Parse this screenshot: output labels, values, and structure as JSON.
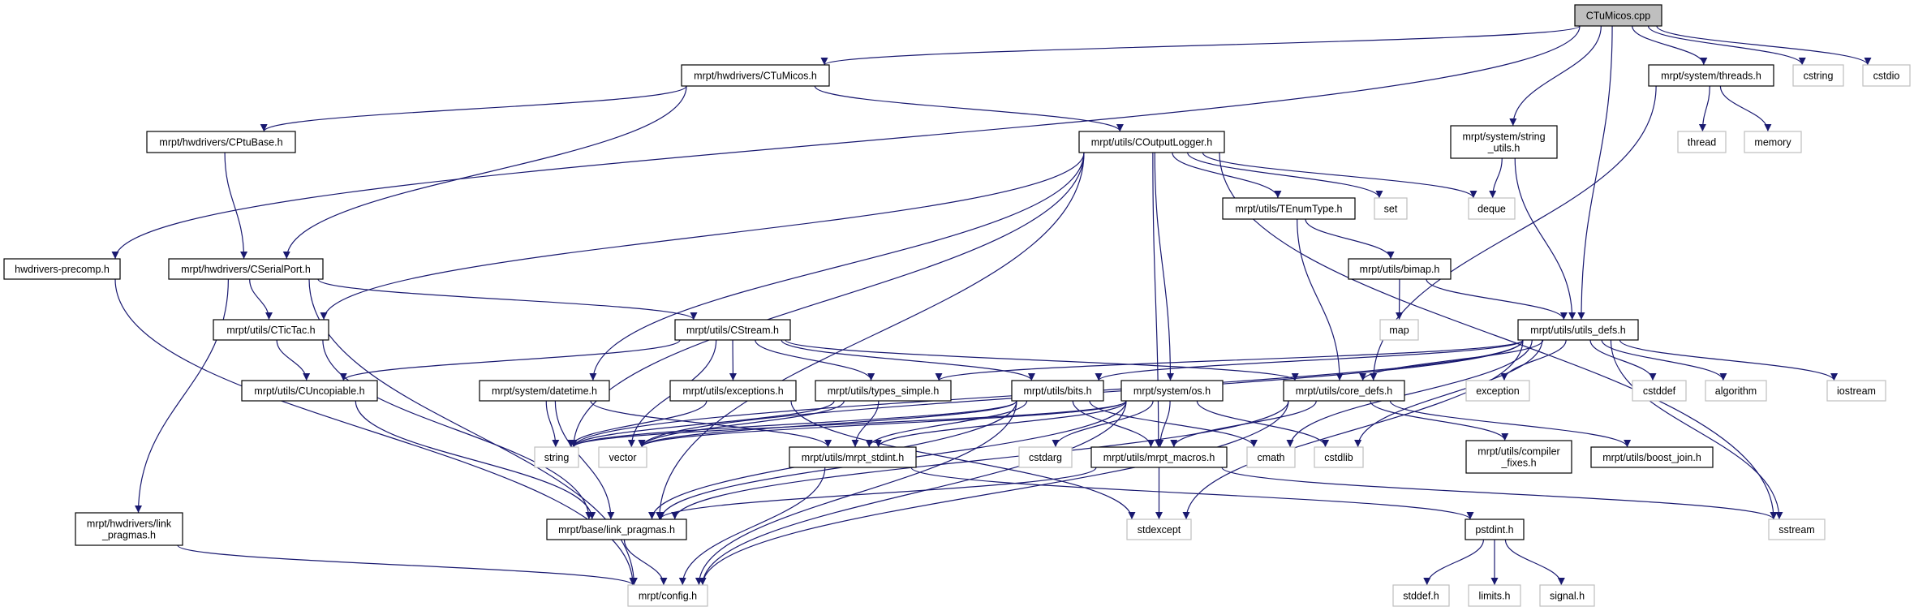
{
  "colors": {
    "edge": "#191970",
    "root_fill": "#bfbfbf",
    "external_border": "#bfbfbf",
    "documented_border": "#000000"
  },
  "nodes": {
    "cpp": {
      "lines": [
        "CTuMicos.cpp"
      ],
      "kind": "root"
    },
    "ctumicos_h": {
      "lines": [
        "mrpt/hwdrivers/CTuMicos.h"
      ],
      "kind": "documented"
    },
    "threads": {
      "lines": [
        "mrpt/system/threads.h"
      ],
      "kind": "documented"
    },
    "cstring": {
      "lines": [
        "cstring"
      ],
      "kind": "external"
    },
    "cstdio": {
      "lines": [
        "cstdio"
      ],
      "kind": "external"
    },
    "cptubase": {
      "lines": [
        "mrpt/hwdrivers/CPtuBase.h"
      ],
      "kind": "documented"
    },
    "outputlogger": {
      "lines": [
        "mrpt/utils/COutputLogger.h"
      ],
      "kind": "documented"
    },
    "string_utils": {
      "lines": [
        "mrpt/system/string",
        "_utils.h"
      ],
      "kind": "documented"
    },
    "thread": {
      "lines": [
        "thread"
      ],
      "kind": "external"
    },
    "memory": {
      "lines": [
        "memory"
      ],
      "kind": "external"
    },
    "precomp": {
      "lines": [
        "hwdrivers-precomp.h"
      ],
      "kind": "documented"
    },
    "serialport": {
      "lines": [
        "mrpt/hwdrivers/CSerialPort.h"
      ],
      "kind": "documented"
    },
    "tenum": {
      "lines": [
        "mrpt/utils/TEnumType.h"
      ],
      "kind": "documented"
    },
    "set": {
      "lines": [
        "set"
      ],
      "kind": "external"
    },
    "deque": {
      "lines": [
        "deque"
      ],
      "kind": "external"
    },
    "bimap": {
      "lines": [
        "mrpt/utils/bimap.h"
      ],
      "kind": "documented"
    },
    "tictac": {
      "lines": [
        "mrpt/utils/CTicTac.h"
      ],
      "kind": "documented"
    },
    "cstream": {
      "lines": [
        "mrpt/utils/CStream.h"
      ],
      "kind": "documented"
    },
    "map": {
      "lines": [
        "map"
      ],
      "kind": "external"
    },
    "utils_defs": {
      "lines": [
        "mrpt/utils/utils_defs.h"
      ],
      "kind": "documented"
    },
    "cuncopiable": {
      "lines": [
        "mrpt/utils/CUncopiable.h"
      ],
      "kind": "documented"
    },
    "datetime": {
      "lines": [
        "mrpt/system/datetime.h"
      ],
      "kind": "documented"
    },
    "exceptions": {
      "lines": [
        "mrpt/utils/exceptions.h"
      ],
      "kind": "documented"
    },
    "types_simple": {
      "lines": [
        "mrpt/utils/types_simple.h"
      ],
      "kind": "documented"
    },
    "bits": {
      "lines": [
        "mrpt/utils/bits.h"
      ],
      "kind": "documented"
    },
    "os": {
      "lines": [
        "mrpt/system/os.h"
      ],
      "kind": "documented"
    },
    "core_defs": {
      "lines": [
        "mrpt/utils/core_defs.h"
      ],
      "kind": "documented"
    },
    "exception": {
      "lines": [
        "exception"
      ],
      "kind": "external"
    },
    "cstddef": {
      "lines": [
        "cstddef"
      ],
      "kind": "external"
    },
    "algorithm": {
      "lines": [
        "algorithm"
      ],
      "kind": "external"
    },
    "iostream": {
      "lines": [
        "iostream"
      ],
      "kind": "external"
    },
    "string": {
      "lines": [
        "string"
      ],
      "kind": "external"
    },
    "vector": {
      "lines": [
        "vector"
      ],
      "kind": "external"
    },
    "stdint": {
      "lines": [
        "mrpt/utils/mrpt_stdint.h"
      ],
      "kind": "documented"
    },
    "cstdarg": {
      "lines": [
        "cstdarg"
      ],
      "kind": "external"
    },
    "macros": {
      "lines": [
        "mrpt/utils/mrpt_macros.h"
      ],
      "kind": "documented"
    },
    "cmath": {
      "lines": [
        "cmath"
      ],
      "kind": "external"
    },
    "cstdlib": {
      "lines": [
        "cstdlib"
      ],
      "kind": "external"
    },
    "compiler_fixes": {
      "lines": [
        "mrpt/utils/compiler",
        "_fixes.h"
      ],
      "kind": "documented"
    },
    "boost_join": {
      "lines": [
        "mrpt/utils/boost_join.h"
      ],
      "kind": "documented"
    },
    "hw_link": {
      "lines": [
        "mrpt/hwdrivers/link",
        "_pragmas.h"
      ],
      "kind": "documented"
    },
    "base_link": {
      "lines": [
        "mrpt/base/link_pragmas.h"
      ],
      "kind": "documented"
    },
    "stdexcept": {
      "lines": [
        "stdexcept"
      ],
      "kind": "external"
    },
    "pstdint": {
      "lines": [
        "pstdint.h"
      ],
      "kind": "documented"
    },
    "sstream": {
      "lines": [
        "sstream"
      ],
      "kind": "external"
    },
    "config": {
      "lines": [
        "mrpt/config.h"
      ],
      "kind": "external"
    },
    "stddef": {
      "lines": [
        "stddef.h"
      ],
      "kind": "external"
    },
    "limits": {
      "lines": [
        "limits.h"
      ],
      "kind": "external"
    },
    "signal": {
      "lines": [
        "signal.h"
      ],
      "kind": "external"
    }
  },
  "edges": [
    [
      "cpp",
      "precomp"
    ],
    [
      "cpp",
      "ctumicos_h"
    ],
    [
      "cpp",
      "string_utils"
    ],
    [
      "cpp",
      "utils_defs"
    ],
    [
      "cpp",
      "threads"
    ],
    [
      "cpp",
      "cstring"
    ],
    [
      "cpp",
      "cstdio"
    ],
    [
      "ctumicos_h",
      "cptubase"
    ],
    [
      "ctumicos_h",
      "serialport"
    ],
    [
      "ctumicos_h",
      "outputlogger"
    ],
    [
      "cptubase",
      "serialport"
    ],
    [
      "precomp",
      "config"
    ],
    [
      "serialport",
      "tictac"
    ],
    [
      "serialport",
      "cstream"
    ],
    [
      "serialport",
      "hw_link"
    ],
    [
      "serialport",
      "config"
    ],
    [
      "outputlogger",
      "tictac"
    ],
    [
      "outputlogger",
      "base_link"
    ],
    [
      "outputlogger",
      "string"
    ],
    [
      "outputlogger",
      "datetime"
    ],
    [
      "outputlogger",
      "os"
    ],
    [
      "outputlogger",
      "macros"
    ],
    [
      "outputlogger",
      "tenum"
    ],
    [
      "outputlogger",
      "set"
    ],
    [
      "outputlogger",
      "deque"
    ],
    [
      "outputlogger",
      "sstream"
    ],
    [
      "string_utils",
      "deque"
    ],
    [
      "string_utils",
      "utils_defs"
    ],
    [
      "threads",
      "core_defs"
    ],
    [
      "threads",
      "thread"
    ],
    [
      "threads",
      "memory"
    ],
    [
      "tenum",
      "core_defs"
    ],
    [
      "tenum",
      "bimap"
    ],
    [
      "bimap",
      "map"
    ],
    [
      "bimap",
      "utils_defs"
    ],
    [
      "tictac",
      "cuncopiable"
    ],
    [
      "tictac",
      "base_link"
    ],
    [
      "cuncopiable",
      "base_link"
    ],
    [
      "hw_link",
      "config"
    ],
    [
      "cstream",
      "cuncopiable"
    ],
    [
      "cstream",
      "vector"
    ],
    [
      "cstream",
      "exceptions"
    ],
    [
      "cstream",
      "types_simple"
    ],
    [
      "cstream",
      "bits"
    ],
    [
      "cstream",
      "core_defs"
    ],
    [
      "datetime",
      "string"
    ],
    [
      "datetime",
      "base_link"
    ],
    [
      "datetime",
      "stdint"
    ],
    [
      "exceptions",
      "string"
    ],
    [
      "exceptions",
      "stdexcept"
    ],
    [
      "types_simple",
      "string"
    ],
    [
      "types_simple",
      "vector"
    ],
    [
      "types_simple",
      "stdint"
    ],
    [
      "bits",
      "string"
    ],
    [
      "bits",
      "vector"
    ],
    [
      "bits",
      "stdint"
    ],
    [
      "bits",
      "macros"
    ],
    [
      "bits",
      "cmath"
    ],
    [
      "bits",
      "base_link"
    ],
    [
      "bits",
      "config"
    ],
    [
      "os",
      "cstdarg"
    ],
    [
      "os",
      "macros"
    ],
    [
      "os",
      "cstdlib"
    ],
    [
      "os",
      "string"
    ],
    [
      "os",
      "vector"
    ],
    [
      "os",
      "stdint"
    ],
    [
      "os",
      "config"
    ],
    [
      "os",
      "base_link"
    ],
    [
      "utils_defs",
      "core_defs"
    ],
    [
      "utils_defs",
      "types_simple"
    ],
    [
      "utils_defs",
      "bits"
    ],
    [
      "utils_defs",
      "exception"
    ],
    [
      "utils_defs",
      "cstddef"
    ],
    [
      "utils_defs",
      "algorithm"
    ],
    [
      "utils_defs",
      "iostream"
    ],
    [
      "utils_defs",
      "sstream"
    ],
    [
      "utils_defs",
      "cmath"
    ],
    [
      "utils_defs",
      "cstdlib"
    ],
    [
      "utils_defs",
      "stdexcept"
    ],
    [
      "utils_defs",
      "string"
    ],
    [
      "utils_defs",
      "vector"
    ],
    [
      "core_defs",
      "macros"
    ],
    [
      "core_defs",
      "config"
    ],
    [
      "core_defs",
      "compiler_fixes"
    ],
    [
      "core_defs",
      "boost_join"
    ],
    [
      "core_defs",
      "base_link"
    ],
    [
      "macros",
      "base_link"
    ],
    [
      "macros",
      "stdexcept"
    ],
    [
      "macros",
      "sstream"
    ],
    [
      "stdint",
      "config"
    ],
    [
      "stdint",
      "pstdint"
    ],
    [
      "pstdint",
      "stddef"
    ],
    [
      "pstdint",
      "limits"
    ],
    [
      "pstdint",
      "signal"
    ],
    [
      "base_link",
      "config"
    ]
  ]
}
